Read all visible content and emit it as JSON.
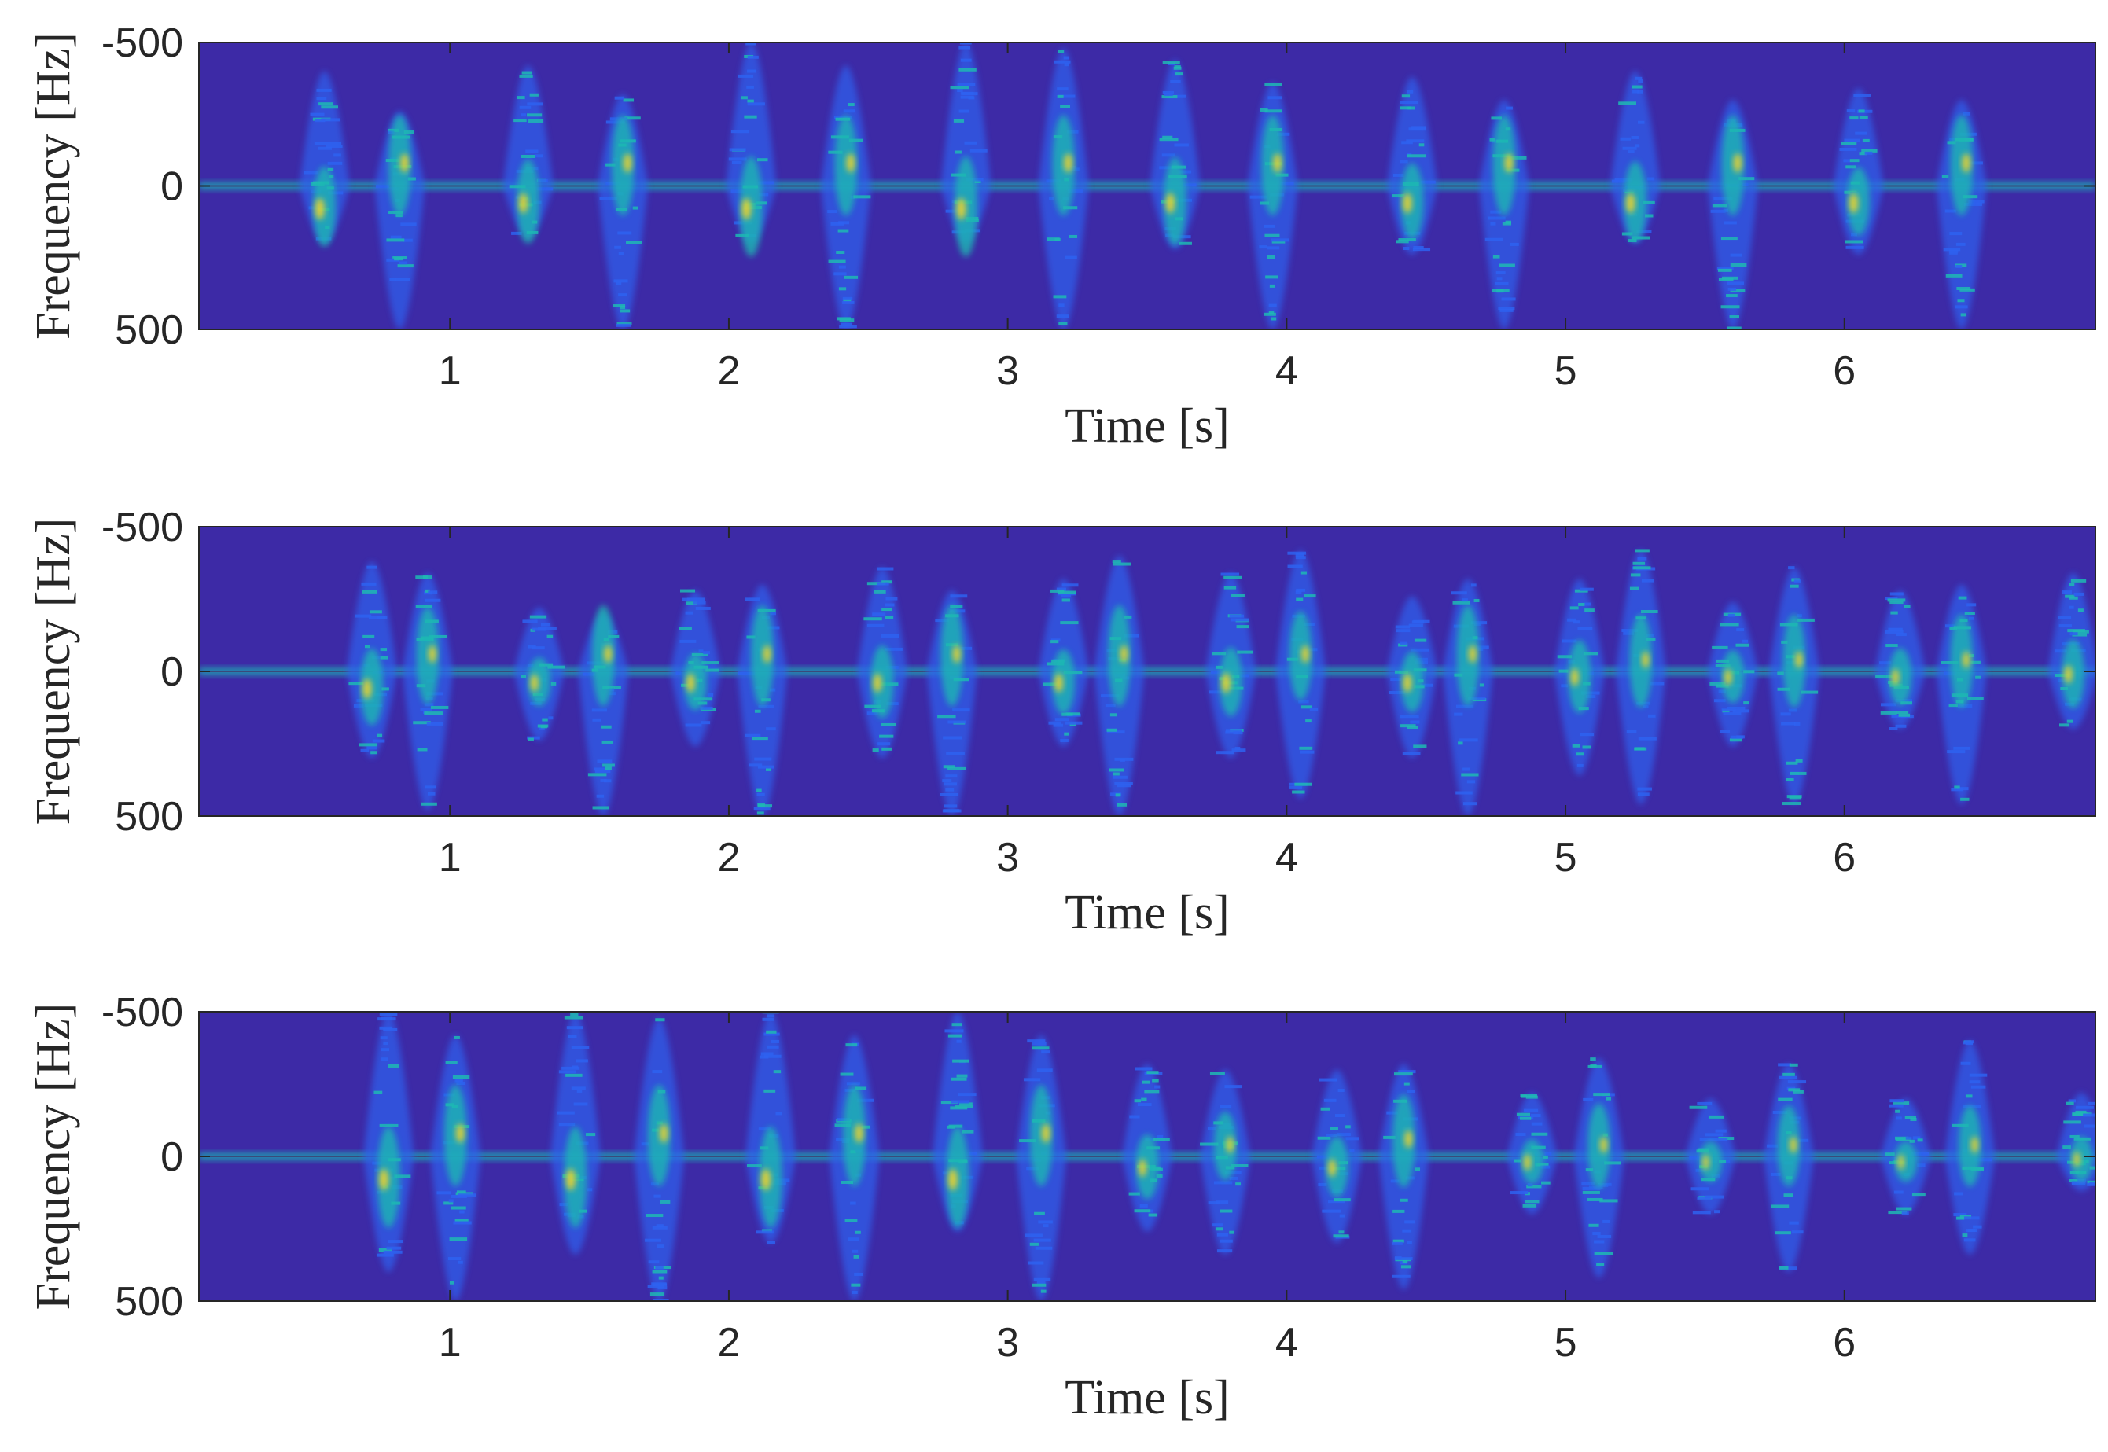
{
  "chart_data": [
    {
      "type": "heatmap",
      "title": "",
      "xlabel": "Time [s]",
      "ylabel": "Frequency [Hz]",
      "xlim": [
        0.1,
        6.9
      ],
      "ylim": [
        -500,
        500
      ],
      "y_reversed": true,
      "xticks": [
        1,
        2,
        3,
        4,
        5,
        6
      ],
      "yticks": [
        -500,
        0,
        500
      ],
      "colormap": "parula",
      "colors": {
        "background": "#3d2aa6",
        "low": "#2e62f0",
        "mid": "#1fb8b3",
        "high": "#f2d42c"
      },
      "grid": false,
      "bursts": [
        {
          "t": 0.55,
          "f": 80,
          "up": 400,
          "down": 200,
          "intensity": 0.85
        },
        {
          "t": 0.82,
          "f": -80,
          "up": 260,
          "down": 500,
          "intensity": 0.75
        },
        {
          "t": 1.28,
          "f": 60,
          "up": 420,
          "down": 180,
          "intensity": 0.8
        },
        {
          "t": 1.62,
          "f": -80,
          "up": 320,
          "down": 500,
          "intensity": 0.75
        },
        {
          "t": 2.08,
          "f": 80,
          "up": 500,
          "down": 200,
          "intensity": 0.85
        },
        {
          "t": 2.42,
          "f": -80,
          "up": 420,
          "down": 500,
          "intensity": 0.75
        },
        {
          "t": 2.85,
          "f": 80,
          "up": 500,
          "down": 200,
          "intensity": 0.85
        },
        {
          "t": 3.2,
          "f": -80,
          "up": 480,
          "down": 500,
          "intensity": 0.75
        },
        {
          "t": 3.6,
          "f": 60,
          "up": 440,
          "down": 220,
          "intensity": 0.8
        },
        {
          "t": 3.95,
          "f": -80,
          "up": 360,
          "down": 500,
          "intensity": 0.75
        },
        {
          "t": 4.45,
          "f": 60,
          "up": 380,
          "down": 240,
          "intensity": 0.8
        },
        {
          "t": 4.78,
          "f": -80,
          "up": 300,
          "down": 500,
          "intensity": 0.75
        },
        {
          "t": 5.25,
          "f": 60,
          "up": 400,
          "down": 200,
          "intensity": 0.8
        },
        {
          "t": 5.6,
          "f": -80,
          "up": 300,
          "down": 500,
          "intensity": 0.75
        },
        {
          "t": 6.05,
          "f": 60,
          "up": 340,
          "down": 240,
          "intensity": 0.8
        },
        {
          "t": 6.42,
          "f": -80,
          "up": 300,
          "down": 500,
          "intensity": 0.75
        }
      ]
    },
    {
      "type": "heatmap",
      "title": "",
      "xlabel": "Time [s]",
      "ylabel": "Frequency [Hz]",
      "xlim": [
        0.1,
        6.9
      ],
      "ylim": [
        -500,
        500
      ],
      "y_reversed": true,
      "xticks": [
        1,
        2,
        3,
        4,
        5,
        6
      ],
      "yticks": [
        -500,
        0,
        500
      ],
      "colormap": "parula",
      "colors": {
        "background": "#3d2aa6",
        "low": "#2e62f0",
        "mid": "#1fb8b3",
        "high": "#f2d42c"
      },
      "grid": false,
      "bursts": [
        {
          "t": 0.72,
          "f": 60,
          "up": 380,
          "down": 300,
          "intensity": 0.8
        },
        {
          "t": 0.92,
          "f": -60,
          "up": 340,
          "down": 480,
          "intensity": 0.7
        },
        {
          "t": 1.32,
          "f": 40,
          "up": 220,
          "down": 240,
          "intensity": 0.7
        },
        {
          "t": 1.55,
          "f": -60,
          "up": 200,
          "down": 500,
          "intensity": 0.7
        },
        {
          "t": 1.88,
          "f": 40,
          "up": 280,
          "down": 260,
          "intensity": 0.75
        },
        {
          "t": 2.12,
          "f": -60,
          "up": 300,
          "down": 500,
          "intensity": 0.7
        },
        {
          "t": 2.55,
          "f": 40,
          "up": 360,
          "down": 300,
          "intensity": 0.75
        },
        {
          "t": 2.8,
          "f": -60,
          "up": 280,
          "down": 500,
          "intensity": 0.7
        },
        {
          "t": 3.2,
          "f": 40,
          "up": 320,
          "down": 260,
          "intensity": 0.75
        },
        {
          "t": 3.4,
          "f": -60,
          "up": 400,
          "down": 500,
          "intensity": 0.7
        },
        {
          "t": 3.8,
          "f": 40,
          "up": 340,
          "down": 300,
          "intensity": 0.8
        },
        {
          "t": 4.05,
          "f": -60,
          "up": 420,
          "down": 440,
          "intensity": 0.7
        },
        {
          "t": 4.45,
          "f": 40,
          "up": 260,
          "down": 300,
          "intensity": 0.75
        },
        {
          "t": 4.65,
          "f": -60,
          "up": 320,
          "down": 500,
          "intensity": 0.7
        },
        {
          "t": 5.05,
          "f": 20,
          "up": 320,
          "down": 360,
          "intensity": 0.7
        },
        {
          "t": 5.27,
          "f": -40,
          "up": 420,
          "down": 460,
          "intensity": 0.65
        },
        {
          "t": 5.6,
          "f": 20,
          "up": 240,
          "down": 260,
          "intensity": 0.65
        },
        {
          "t": 5.82,
          "f": -40,
          "up": 360,
          "down": 460,
          "intensity": 0.65
        },
        {
          "t": 6.2,
          "f": 20,
          "up": 280,
          "down": 200,
          "intensity": 0.65
        },
        {
          "t": 6.42,
          "f": -40,
          "up": 300,
          "down": 460,
          "intensity": 0.65
        },
        {
          "t": 6.82,
          "f": 10,
          "up": 340,
          "down": 200,
          "intensity": 0.7
        }
      ]
    },
    {
      "type": "heatmap",
      "title": "",
      "xlabel": "Time [s]",
      "ylabel": "Frequency [Hz]",
      "xlim": [
        0.1,
        6.9
      ],
      "ylim": [
        -500,
        500
      ],
      "y_reversed": true,
      "xticks": [
        1,
        2,
        3,
        4,
        5,
        6
      ],
      "yticks": [
        -500,
        0,
        500
      ],
      "colormap": "parula",
      "colors": {
        "background": "#3d2aa6",
        "low": "#2e62f0",
        "mid": "#1fb8b3",
        "high": "#f2d42c"
      },
      "grid": false,
      "bursts": [
        {
          "t": 0.78,
          "f": 80,
          "up": 500,
          "down": 400,
          "intensity": 0.85
        },
        {
          "t": 1.02,
          "f": -80,
          "up": 420,
          "down": 500,
          "intensity": 0.75
        },
        {
          "t": 1.45,
          "f": 80,
          "up": 500,
          "down": 340,
          "intensity": 0.85
        },
        {
          "t": 1.75,
          "f": -80,
          "up": 480,
          "down": 500,
          "intensity": 0.75
        },
        {
          "t": 2.15,
          "f": 80,
          "up": 500,
          "down": 300,
          "intensity": 0.85
        },
        {
          "t": 2.45,
          "f": -80,
          "up": 420,
          "down": 500,
          "intensity": 0.75
        },
        {
          "t": 2.82,
          "f": 80,
          "up": 500,
          "down": 260,
          "intensity": 0.85
        },
        {
          "t": 3.12,
          "f": -80,
          "up": 420,
          "down": 500,
          "intensity": 0.75
        },
        {
          "t": 3.5,
          "f": 40,
          "up": 320,
          "down": 260,
          "intensity": 0.7
        },
        {
          "t": 3.78,
          "f": -40,
          "up": 300,
          "down": 340,
          "intensity": 0.65
        },
        {
          "t": 4.18,
          "f": 40,
          "up": 300,
          "down": 300,
          "intensity": 0.7
        },
        {
          "t": 4.42,
          "f": -60,
          "up": 320,
          "down": 460,
          "intensity": 0.7
        },
        {
          "t": 4.88,
          "f": 20,
          "up": 220,
          "down": 200,
          "intensity": 0.65
        },
        {
          "t": 5.12,
          "f": -40,
          "up": 340,
          "down": 420,
          "intensity": 0.65
        },
        {
          "t": 5.52,
          "f": 20,
          "up": 200,
          "down": 200,
          "intensity": 0.6
        },
        {
          "t": 5.8,
          "f": -40,
          "up": 320,
          "down": 400,
          "intensity": 0.65
        },
        {
          "t": 6.22,
          "f": 20,
          "up": 200,
          "down": 200,
          "intensity": 0.6
        },
        {
          "t": 6.45,
          "f": -40,
          "up": 400,
          "down": 340,
          "intensity": 0.65
        },
        {
          "t": 6.85,
          "f": 10,
          "up": 220,
          "down": 120,
          "intensity": 0.6
        }
      ]
    }
  ]
}
